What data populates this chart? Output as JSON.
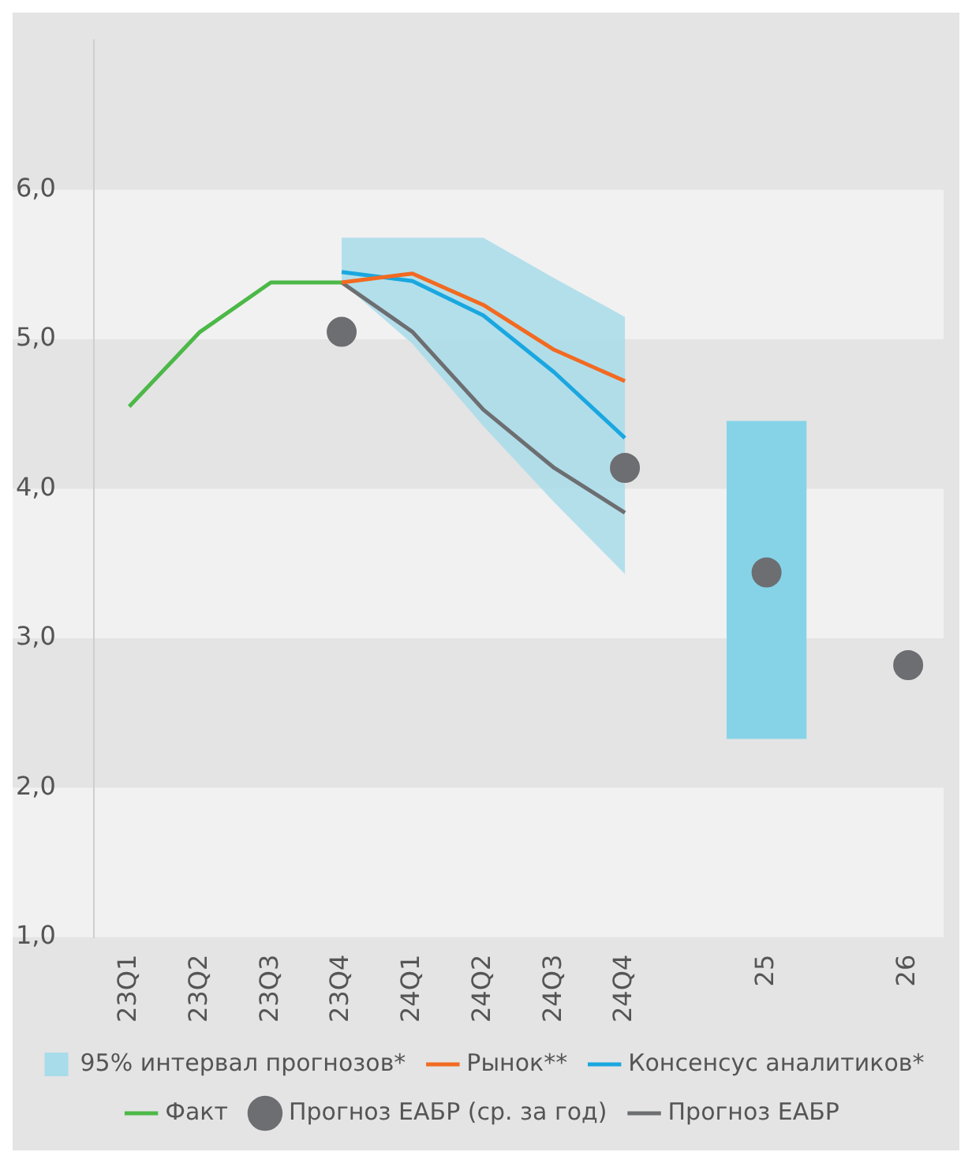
{
  "chart_data": {
    "type": "line",
    "categories": [
      "23Q1",
      "23Q2",
      "23Q3",
      "23Q4",
      "24Q1",
      "24Q2",
      "24Q3",
      "24Q4",
      null,
      "25",
      null,
      "26"
    ],
    "ylim": [
      1,
      7
    ],
    "yticks": [
      {
        "value": 1,
        "label": "1,0"
      },
      {
        "value": 2,
        "label": "2,0"
      },
      {
        "value": 3,
        "label": "3,0"
      },
      {
        "value": 4,
        "label": "4,0"
      },
      {
        "value": 5,
        "label": "5,0"
      },
      {
        "value": 6,
        "label": "6,0"
      }
    ],
    "legend": "bottom",
    "bands": [
      {
        "axis": "y",
        "from": 1,
        "to": 2,
        "color": "#f1f1f1"
      },
      {
        "axis": "y",
        "from": 3,
        "to": 4,
        "color": "#f1f1f1"
      },
      {
        "axis": "y",
        "from": 5,
        "to": 6,
        "color": "#f1f1f1"
      }
    ],
    "series": [
      {
        "name": "95% интервал прогнозов*",
        "type": "area",
        "color": "#a8dcea",
        "values": [
          null,
          null,
          null,
          null,
          null,
          null,
          null,
          null,
          null,
          null,
          null,
          null
        ],
        "lower": [
          null,
          null,
          null,
          5.38,
          4.97,
          4.42,
          3.91,
          3.43,
          null,
          null,
          null,
          null
        ],
        "upper": [
          null,
          null,
          null,
          5.68,
          5.68,
          5.68,
          5.41,
          5.15,
          null,
          null,
          null,
          null
        ]
      },
      {
        "type": "bar",
        "color": "#86d3e8",
        "values": [
          null,
          null,
          null,
          null,
          null,
          null,
          null,
          null,
          null,
          2.12,
          null,
          null
        ],
        "base": [
          null,
          null,
          null,
          null,
          null,
          null,
          null,
          null,
          null,
          2.33,
          null,
          null
        ]
      },
      {
        "name": "Рынок**",
        "color": "#f26a21",
        "values": [
          null,
          null,
          null,
          5.38,
          5.44,
          5.23,
          4.93,
          4.72,
          null,
          null,
          null,
          null
        ]
      },
      {
        "name": "Консенсус аналитиков*",
        "color": "#1aa7e0",
        "values": [
          null,
          null,
          null,
          5.45,
          5.39,
          5.16,
          4.78,
          4.34,
          null,
          null,
          null,
          null
        ]
      },
      {
        "name": "Факт",
        "color": "#4cb848",
        "values": [
          4.55,
          5.05,
          5.38,
          5.38,
          null,
          null,
          null,
          null,
          null,
          null,
          null,
          null
        ]
      },
      {
        "name": "Прогноз ЕАБР (ср. за год)",
        "type": "scatter",
        "marker": "circle",
        "color": "#6d6e71",
        "values": [
          null,
          null,
          null,
          5.05,
          null,
          null,
          null,
          4.14,
          null,
          3.44,
          null,
          2.82
        ]
      },
      {
        "name": "Прогноз ЕАБР",
        "color": "#6d6e71",
        "values": [
          null,
          null,
          null,
          5.38,
          5.05,
          4.53,
          4.14,
          3.84,
          null,
          null,
          null,
          null
        ]
      }
    ]
  }
}
